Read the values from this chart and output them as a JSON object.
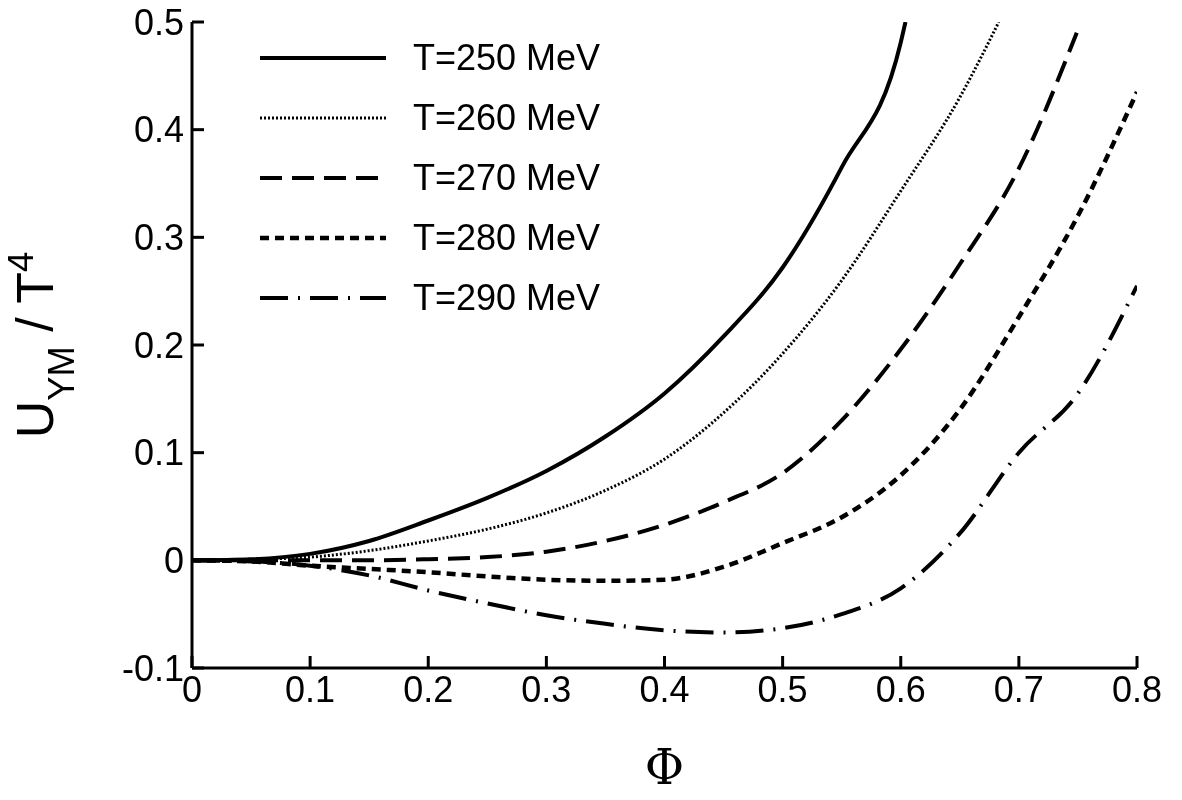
{
  "chart_data": {
    "type": "line",
    "xlabel": "Φ",
    "ylabel": "U$_{YM}$ / T$^{4}$",
    "xlim": [
      0,
      0.8
    ],
    "ylim": [
      -0.1,
      0.5
    ],
    "xticks": [
      0,
      0.1,
      0.2,
      0.3,
      0.4,
      0.5,
      0.6,
      0.7,
      0.8
    ],
    "yticks": [
      -0.1,
      0,
      0.1,
      0.2,
      0.3,
      0.4,
      0.5
    ],
    "legend": "top left",
    "marker": "none",
    "series": [
      {
        "name": "T=250 MeV",
        "color": "#000000",
        "line_style": "solid",
        "x": [
          0,
          0.05,
          0.1,
          0.15,
          0.2,
          0.25,
          0.3,
          0.35,
          0.4,
          0.45,
          0.5,
          0.55,
          0.6,
          0.604
        ],
        "values": [
          0,
          0.001,
          0.006,
          0.018,
          0.037,
          0.058,
          0.083,
          0.115,
          0.155,
          0.208,
          0.272,
          0.365,
          0.481,
          0.5
        ]
      },
      {
        "name": "T=260 MeV",
        "color": "#000000",
        "line_style": "dotted",
        "x": [
          0,
          0.05,
          0.1,
          0.15,
          0.2,
          0.25,
          0.3,
          0.35,
          0.4,
          0.45,
          0.5,
          0.55,
          0.6,
          0.65,
          0.683
        ],
        "values": [
          0,
          0.001,
          0.003,
          0.009,
          0.018,
          0.029,
          0.044,
          0.065,
          0.094,
          0.137,
          0.192,
          0.26,
          0.343,
          0.43,
          0.5
        ]
      },
      {
        "name": "T=270 MeV",
        "color": "#000000",
        "line_style": "dashed",
        "x": [
          0,
          0.05,
          0.1,
          0.15,
          0.2,
          0.25,
          0.3,
          0.35,
          0.4,
          0.45,
          0.5,
          0.55,
          0.6,
          0.65,
          0.7,
          0.749
        ],
        "values": [
          0,
          0,
          0,
          0,
          0.001,
          0.003,
          0.008,
          0.018,
          0.033,
          0.054,
          0.081,
          0.13,
          0.196,
          0.275,
          0.364,
          0.49
        ]
      },
      {
        "name": "T=280 MeV",
        "color": "#000000",
        "line_style": "short-dashed",
        "x": [
          0,
          0.05,
          0.1,
          0.15,
          0.2,
          0.25,
          0.3,
          0.35,
          0.4,
          0.45,
          0.5,
          0.55,
          0.6,
          0.65,
          0.7,
          0.75,
          0.8
        ],
        "values": [
          0,
          -0.001,
          -0.005,
          -0.008,
          -0.011,
          -0.015,
          -0.018,
          -0.019,
          -0.018,
          -0.006,
          0.016,
          0.04,
          0.079,
          0.14,
          0.226,
          0.32,
          0.435
        ]
      },
      {
        "name": "T=290 MeV",
        "color": "#000000",
        "line_style": "dash-dot",
        "x": [
          0,
          0.05,
          0.1,
          0.15,
          0.2,
          0.25,
          0.3,
          0.35,
          0.4,
          0.45,
          0.5,
          0.55,
          0.6,
          0.65,
          0.7,
          0.75,
          0.8
        ],
        "values": [
          0,
          -0.001,
          -0.005,
          -0.014,
          -0.028,
          -0.04,
          -0.051,
          -0.059,
          -0.065,
          -0.067,
          -0.063,
          -0.05,
          -0.026,
          0.025,
          0.1,
          0.155,
          0.255
        ]
      }
    ]
  }
}
